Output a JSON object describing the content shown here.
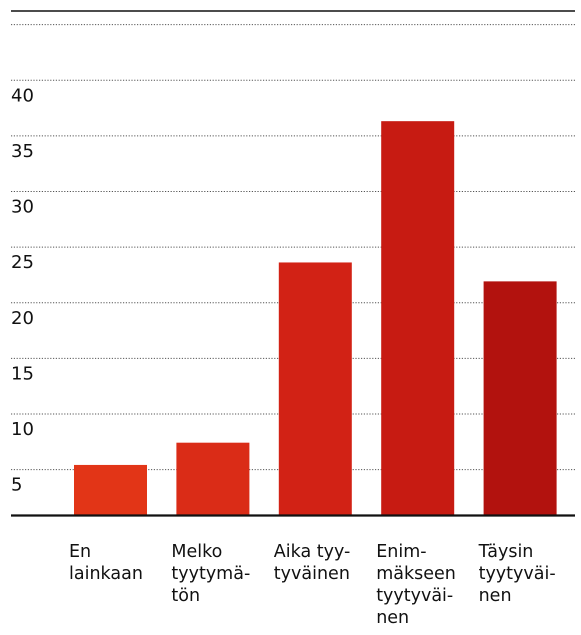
{
  "chart_data": {
    "type": "bar",
    "categories": [
      [
        "En",
        "lainkaan"
      ],
      [
        "Melko",
        "tyytymä-",
        "tön"
      ],
      [
        "Aika tyy-",
        "tyväinen"
      ],
      [
        "Enim-",
        "mäkseen",
        "tyytyväi-",
        "nen"
      ],
      [
        "Täysin",
        "tyytyväi-",
        "nen"
      ]
    ],
    "values": [
      6.5,
      8.5,
      24.7,
      37.4,
      23.0
    ],
    "ylim": [
      2,
      42
    ],
    "yticks": [
      5,
      10,
      15,
      20,
      25,
      30,
      35,
      40
    ],
    "grid": true,
    "legend": "none",
    "colors": [
      "#E23517",
      "#DA2C17",
      "#D22215",
      "#C71B12",
      "#B2120E"
    ]
  }
}
